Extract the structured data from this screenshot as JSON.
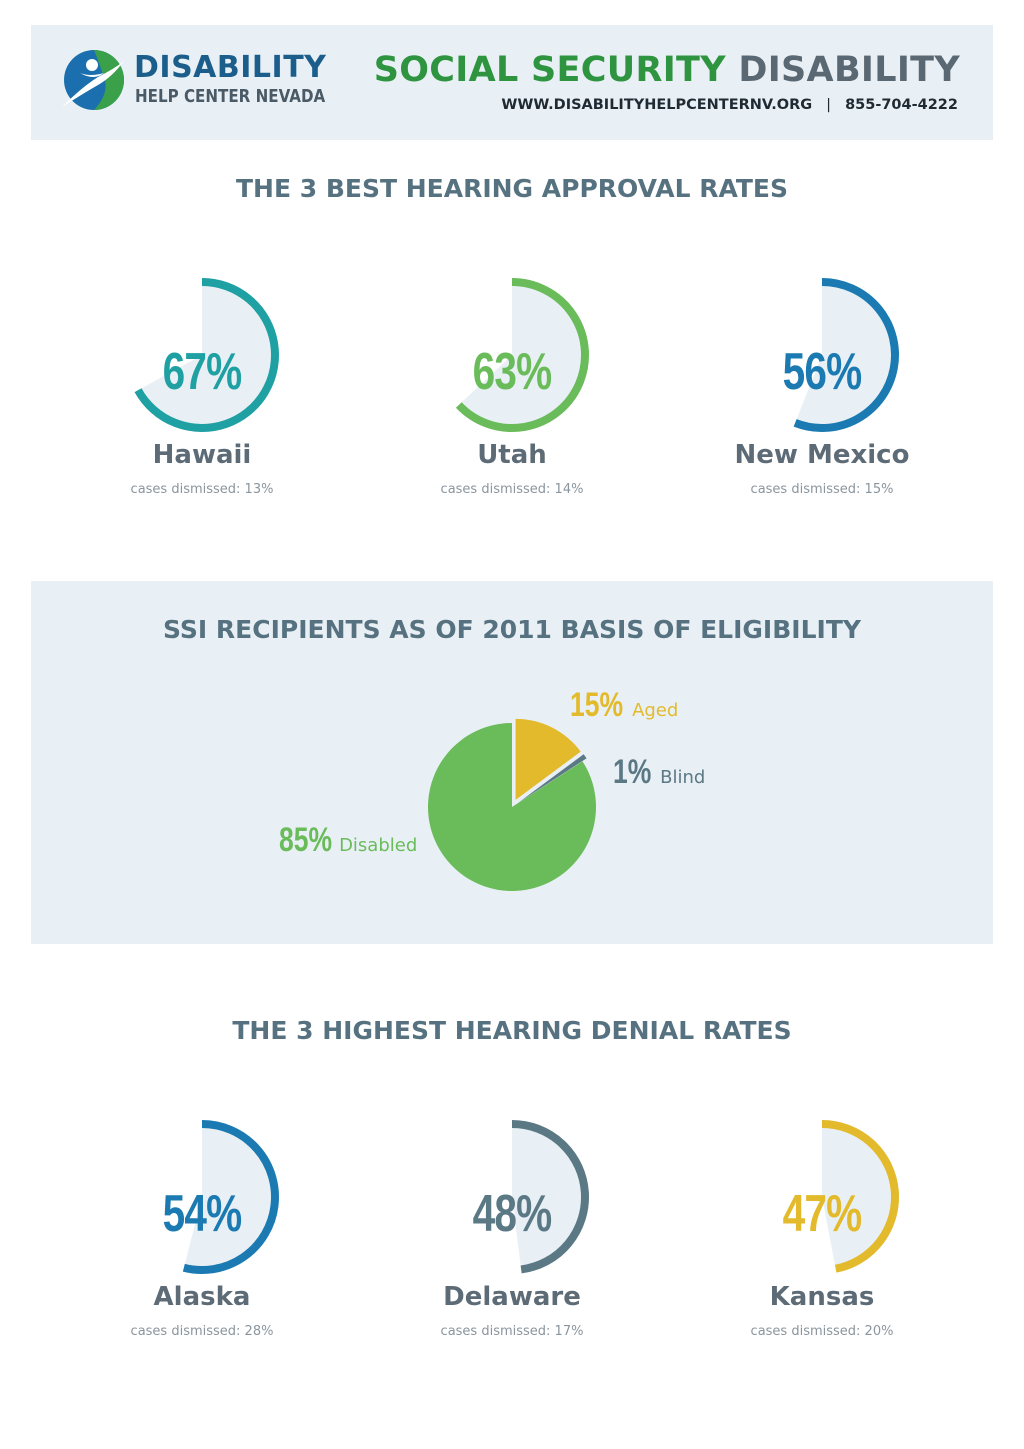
{
  "header": {
    "logo_line1": "DISABILITY",
    "logo_line2": "HELP CENTER NEVADA",
    "title_part1": "SOCIAL SECURITY",
    "title_part2": "DISABILITY",
    "website": "WWW.DISABILITYHELPCENTERNV.ORG",
    "separator": "|",
    "phone": "855-704-4222"
  },
  "colors": {
    "teal": "#1fa0a3",
    "green": "#6abc5b",
    "blue": "#1a7ab1",
    "slate": "#5b7885",
    "gold": "#e2ba2c",
    "track": "#e9f0f5"
  },
  "approval_section": {
    "title": "THE 3 BEST HEARING APPROVAL RATES",
    "states": [
      {
        "state": "Hawaii",
        "percent": "67%",
        "value": 67,
        "dismissed": "cases dismissed: 13%",
        "color": "#1fa0a3"
      },
      {
        "state": "Utah",
        "percent": "63%",
        "value": 63,
        "dismissed": "cases dismissed: 14%",
        "color": "#6abc5b"
      },
      {
        "state": "New Mexico",
        "percent": "56%",
        "value": 56,
        "dismissed": "cases dismissed: 15%",
        "color": "#1a7ab1"
      }
    ]
  },
  "ssi_section": {
    "title": "SSI RECIPIENTS AS OF 2011 BASIS OF ELIGIBILITY"
  },
  "chart_data": {
    "type": "pie",
    "slices": [
      {
        "label": "Aged",
        "value": 15,
        "percent": "15%",
        "color": "#e2ba2c",
        "exploded": true
      },
      {
        "label": "Blind",
        "value": 1,
        "percent": "1%",
        "color": "#5b7885",
        "exploded": true
      },
      {
        "label": "Disabled",
        "value": 85,
        "percent": "85%",
        "color": "#6abc5b",
        "exploded": false
      }
    ]
  },
  "denial_section": {
    "title": "THE 3 HIGHEST HEARING DENIAL RATES",
    "states": [
      {
        "state": "Alaska",
        "percent": "54%",
        "value": 54,
        "dismissed": "cases dismissed: 28%",
        "color": "#1a7ab1"
      },
      {
        "state": "Delaware",
        "percent": "48%",
        "value": 48,
        "dismissed": "cases dismissed: 17%",
        "color": "#5b7885"
      },
      {
        "state": "Kansas",
        "percent": "47%",
        "value": 47,
        "dismissed": "cases dismissed: 20%",
        "color": "#e2ba2c"
      }
    ]
  }
}
